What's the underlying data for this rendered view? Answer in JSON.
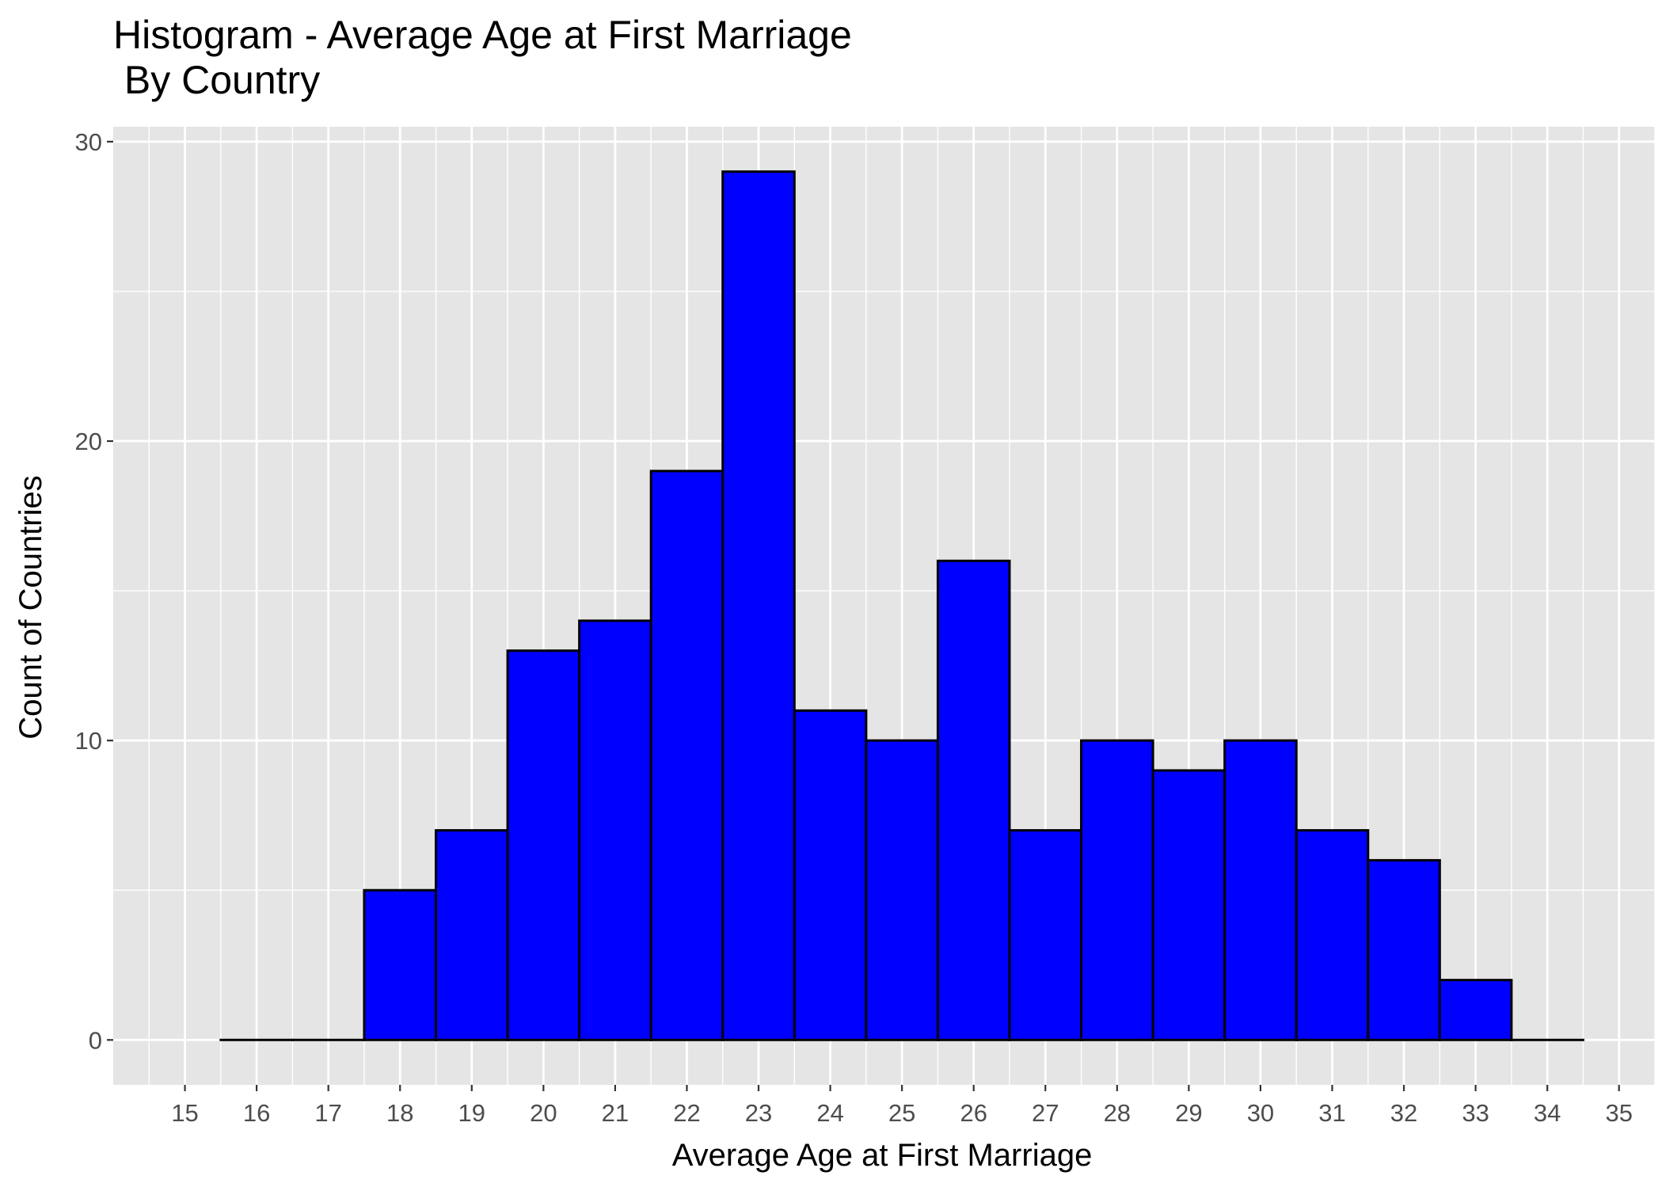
{
  "chart_data": {
    "type": "bar",
    "title": "Histogram - Average Age at First Marriage",
    "subtitle": " By Country",
    "xlabel": "Average Age at First Marriage",
    "ylabel": "Count of Countries",
    "x_ticks": [
      15,
      16,
      17,
      18,
      19,
      20,
      21,
      22,
      23,
      24,
      25,
      26,
      27,
      28,
      29,
      30,
      31,
      32,
      33,
      34,
      35
    ],
    "y_ticks": [
      0,
      10,
      20,
      30
    ],
    "xlim": [
      14.0,
      35.5
    ],
    "ylim": [
      -1.5,
      30.5
    ],
    "bin_width": 1,
    "bin_centers": [
      16,
      17,
      18,
      19,
      20,
      21,
      22,
      23,
      24,
      25,
      26,
      27,
      28,
      29,
      30,
      31,
      32,
      33,
      34
    ],
    "values": [
      0,
      0,
      5,
      7,
      13,
      14,
      19,
      29,
      11,
      10,
      16,
      7,
      10,
      9,
      10,
      7,
      6,
      2,
      0
    ],
    "bar_fill": "#0000ff",
    "bar_outline": "#000000",
    "panel_background": "#e5e5e5",
    "grid": true,
    "grid_color": "#ffffff",
    "legend": "none"
  }
}
